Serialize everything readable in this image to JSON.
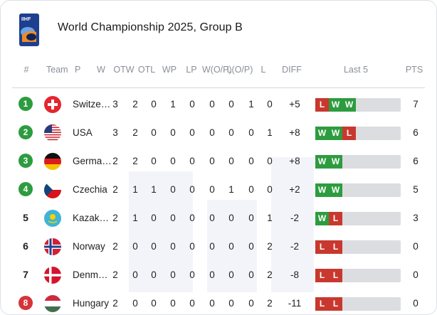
{
  "header": {
    "title": "World Championship 2025, Group B"
  },
  "columns": [
    "#",
    "Team",
    "P",
    "W",
    "OTW",
    "OTL",
    "WP",
    "LP",
    "W(O/P)",
    "L(O/P)",
    "L",
    "DIFF",
    "Last 5",
    "PTS"
  ],
  "colors": {
    "qualify": "#2d9c3f",
    "relegate": "#d4343a",
    "win": "#2d9c3f",
    "loss": "#c8382e"
  },
  "rows": [
    {
      "rank": "1",
      "status": "qualify",
      "team": "Switze…",
      "flag": "switzerland-flag",
      "cols": [
        "3",
        "2",
        "0",
        "1",
        "0",
        "0",
        "0",
        "1",
        "0"
      ],
      "diff": "+5",
      "last5": [
        "L",
        "W",
        "W"
      ],
      "pts": "7"
    },
    {
      "rank": "2",
      "status": "qualify",
      "team": "USA",
      "flag": "usa-flag",
      "cols": [
        "3",
        "2",
        "0",
        "0",
        "0",
        "0",
        "0",
        "0",
        "1"
      ],
      "diff": "+8",
      "last5": [
        "W",
        "W",
        "L"
      ],
      "pts": "6"
    },
    {
      "rank": "3",
      "status": "qualify",
      "team": "Germa…",
      "flag": "germany-flag",
      "cols": [
        "2",
        "2",
        "0",
        "0",
        "0",
        "0",
        "0",
        "0",
        "0"
      ],
      "diff": "+8",
      "last5": [
        "W",
        "W"
      ],
      "pts": "6"
    },
    {
      "rank": "4",
      "status": "qualify",
      "team": "Czechia",
      "flag": "czechia-flag",
      "cols": [
        "2",
        "1",
        "1",
        "0",
        "0",
        "0",
        "1",
        "0",
        "0"
      ],
      "diff": "+2",
      "last5": [
        "W",
        "W"
      ],
      "pts": "5"
    },
    {
      "rank": "5",
      "status": "none",
      "team": "Kazak…",
      "flag": "kazakhstan-flag",
      "cols": [
        "2",
        "1",
        "0",
        "0",
        "0",
        "0",
        "0",
        "0",
        "1"
      ],
      "diff": "-2",
      "last5": [
        "W",
        "L"
      ],
      "pts": "3"
    },
    {
      "rank": "6",
      "status": "none",
      "team": "Norway",
      "flag": "norway-flag",
      "cols": [
        "2",
        "0",
        "0",
        "0",
        "0",
        "0",
        "0",
        "0",
        "2"
      ],
      "diff": "-2",
      "last5": [
        "L",
        "L"
      ],
      "pts": "0"
    },
    {
      "rank": "7",
      "status": "none",
      "team": "Denm…",
      "flag": "denmark-flag",
      "cols": [
        "2",
        "0",
        "0",
        "0",
        "0",
        "0",
        "0",
        "0",
        "2"
      ],
      "diff": "-8",
      "last5": [
        "L",
        "L"
      ],
      "pts": "0"
    },
    {
      "rank": "8",
      "status": "relegate",
      "team": "Hungary",
      "flag": "hungary-flag",
      "cols": [
        "2",
        "0",
        "0",
        "0",
        "0",
        "0",
        "0",
        "0",
        "2"
      ],
      "diff": "-11",
      "last5": [
        "L",
        "L"
      ],
      "pts": "0"
    }
  ]
}
